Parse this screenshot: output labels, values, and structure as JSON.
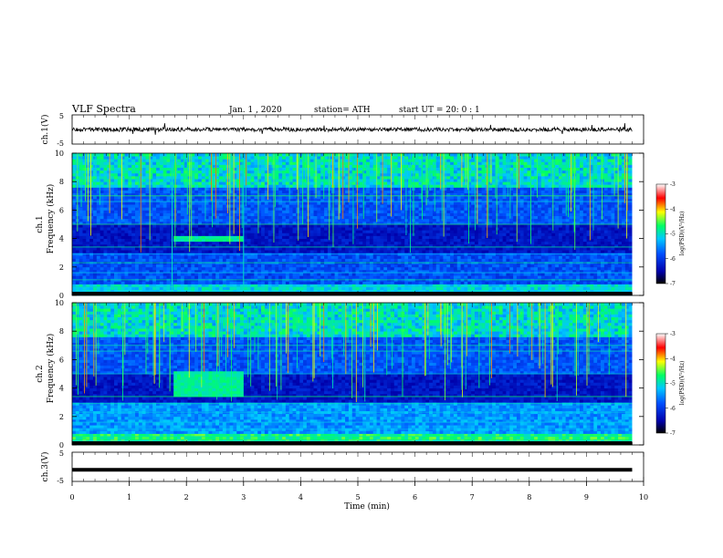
{
  "header": {
    "title": "VLF  Spectra",
    "date": "Jan.  1  , 2020",
    "station": "station= ATH",
    "start": "start  UT  =    20: 0   : 1"
  },
  "chart_data": {
    "type": "heatmap",
    "xlabel": "Time  (min)",
    "xlim": [
      0,
      10
    ],
    "xticks": [
      "0",
      "1",
      "2",
      "3",
      "4",
      "5",
      "6",
      "7",
      "8",
      "9",
      "10"
    ],
    "colors": {
      "scale": [
        "#000000",
        "#0000aa",
        "#0050ff",
        "#00c8ff",
        "#00ff66",
        "#ffff00",
        "#ff0000",
        "#ffffff"
      ]
    },
    "panels": [
      {
        "id": "ch1-waveform",
        "ylabel": "ch.1(V)",
        "ylim": [
          -5,
          5
        ],
        "yticks": [
          "5",
          "-5"
        ]
      },
      {
        "id": "ch1-spectrogram",
        "ylabel_channel": "ch.1",
        "ylabel": "Frequency  (kHz)",
        "ylim": [
          0,
          10
        ],
        "yticks": [
          "0",
          "2",
          "4",
          "6",
          "8",
          "10"
        ],
        "colorbar": {
          "label": "log(PSD)(V²/Hz)",
          "range": [
            -7,
            -3
          ],
          "ticks": [
            "-3",
            "-4",
            "-5",
            "-6",
            "-7"
          ]
        },
        "features": [
          {
            "name": "enhancement",
            "t_min": [
              1.75,
              3.0
            ],
            "f_khz": [
              3.8,
              4.2
            ]
          },
          {
            "name": "spike",
            "t_min": 1.75
          },
          {
            "name": "spike",
            "t_min": 3.0
          }
        ]
      },
      {
        "id": "ch2-spectrogram",
        "ylabel_channel": "ch.2",
        "ylabel": "Frequency  (kHz)",
        "ylim": [
          0,
          10
        ],
        "yticks": [
          "0",
          "2",
          "4",
          "6",
          "8",
          "10"
        ],
        "colorbar": {
          "label": "log(PSD)(V²/Hz)",
          "range": [
            -7,
            -3
          ],
          "ticks": [
            "-3",
            "-4",
            "-5",
            "-6",
            "-7"
          ]
        },
        "features": [
          {
            "name": "enhancement",
            "t_min": [
              1.75,
              3.0
            ],
            "f_khz": [
              3.5,
              5.2
            ]
          }
        ]
      },
      {
        "id": "ch3-waveform",
        "ylabel": "ch.3(V)",
        "ylim": [
          -5,
          5
        ],
        "yticks": [
          "5",
          "-5"
        ],
        "level_v": -1
      }
    ]
  }
}
